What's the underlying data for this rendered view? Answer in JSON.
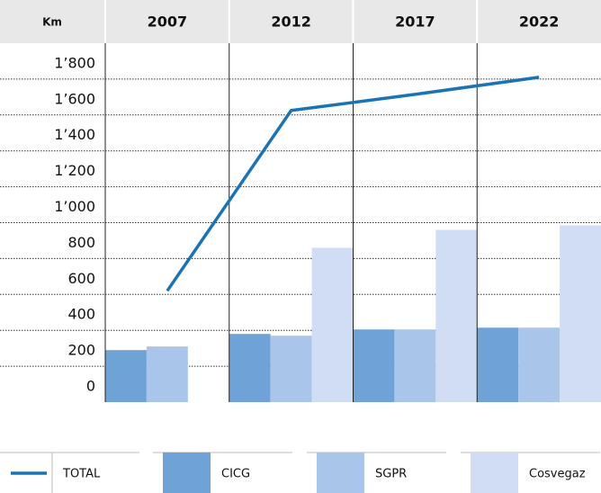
{
  "chart_data": {
    "type": "bar",
    "y_label": "Km",
    "categories": [
      "2007",
      "2012",
      "2017",
      "2022"
    ],
    "series": [
      {
        "name": "TOTAL",
        "type": "line",
        "color": "#1a73b5",
        "values": [
          620,
          1625,
          1715,
          1810
        ]
      },
      {
        "name": "CICG",
        "color": "#6fa3d8",
        "values": [
          290,
          380,
          405,
          415
        ]
      },
      {
        "name": "SGPR",
        "color": "#a9c6ea",
        "values": [
          310,
          370,
          405,
          415
        ]
      },
      {
        "name": "Cosvegaz",
        "color": "#d0ddf4",
        "values": [
          null,
          860,
          960,
          985
        ]
      }
    ],
    "ylim": [
      0,
      2000
    ],
    "yticks": [
      0,
      200,
      400,
      600,
      800,
      {
        "value": 1000,
        "label": "1’000"
      },
      {
        "value": 1200,
        "label": "1’200"
      },
      {
        "value": 1400,
        "label": "1’400"
      },
      {
        "value": 1600,
        "label": "1’600"
      },
      {
        "value": 1800,
        "label": "1’800"
      }
    ],
    "grid": true
  }
}
